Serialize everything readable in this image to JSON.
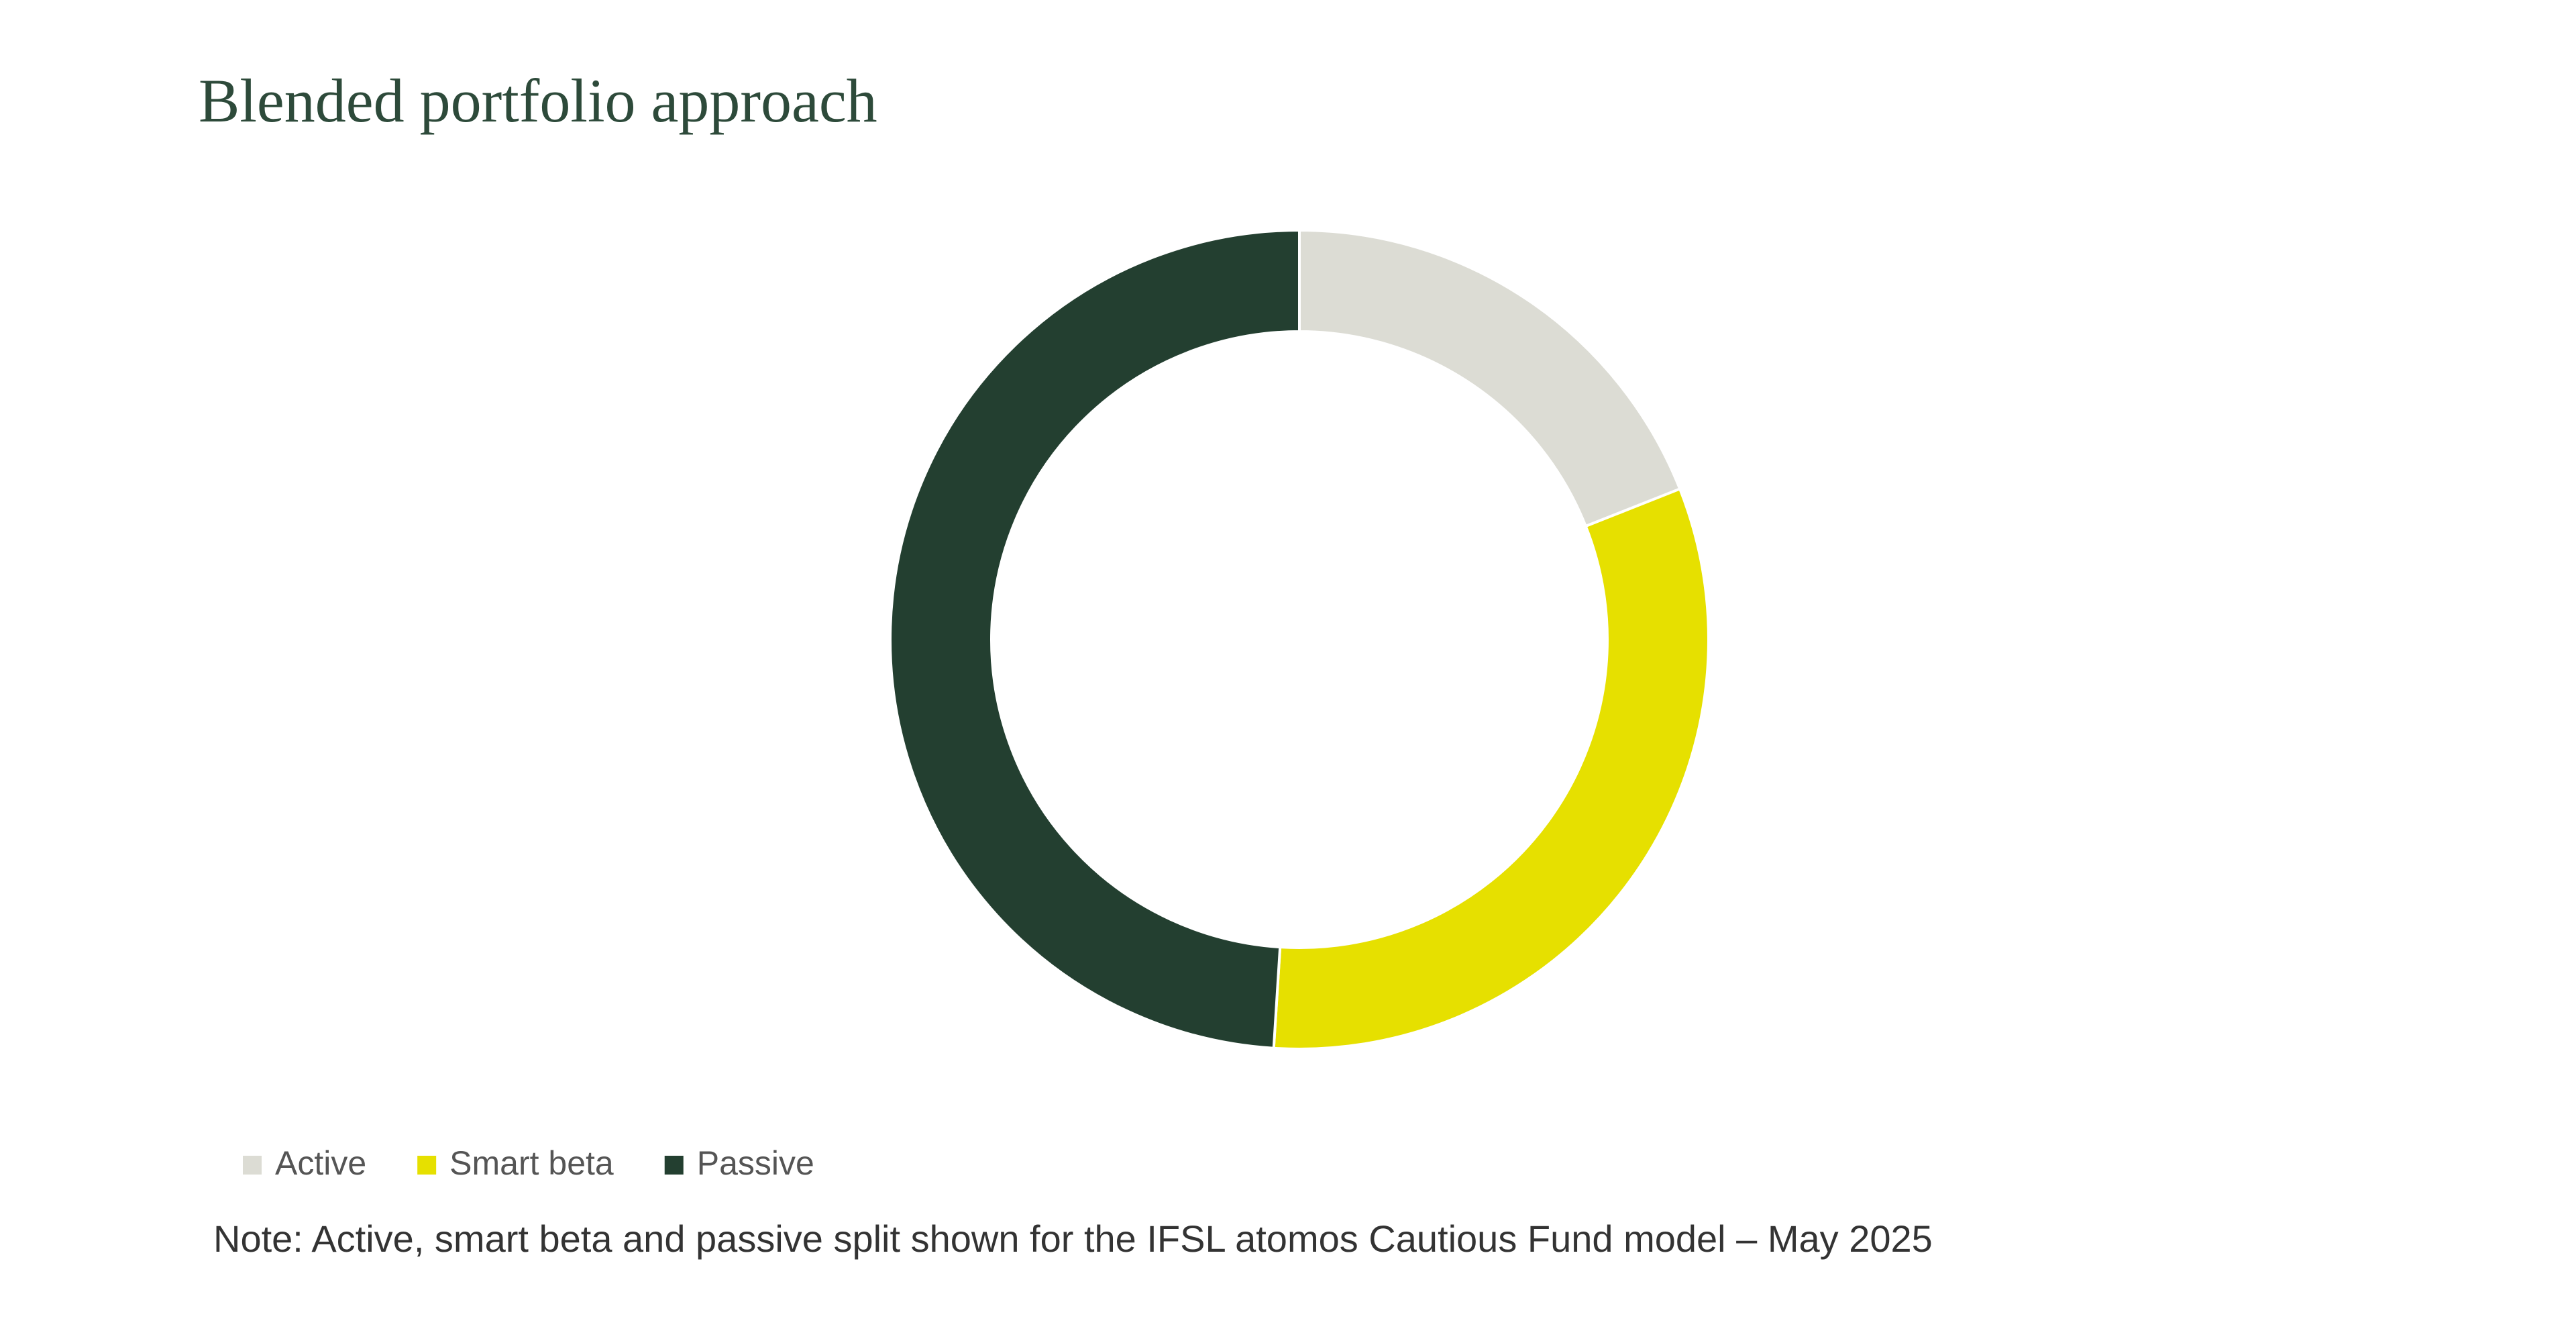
{
  "chart_data": {
    "type": "pie",
    "title": "Blended portfolio approach",
    "categories": [
      "Active",
      "Smart beta",
      "Passive"
    ],
    "values": [
      19,
      32,
      49
    ],
    "colors": [
      "#dcdcd4",
      "#e6e000",
      "#233f30"
    ],
    "donut": true,
    "note": "Note: Active, smart beta and passive split shown for the IFSL atomos Cautious Fund model – May 2025"
  }
}
